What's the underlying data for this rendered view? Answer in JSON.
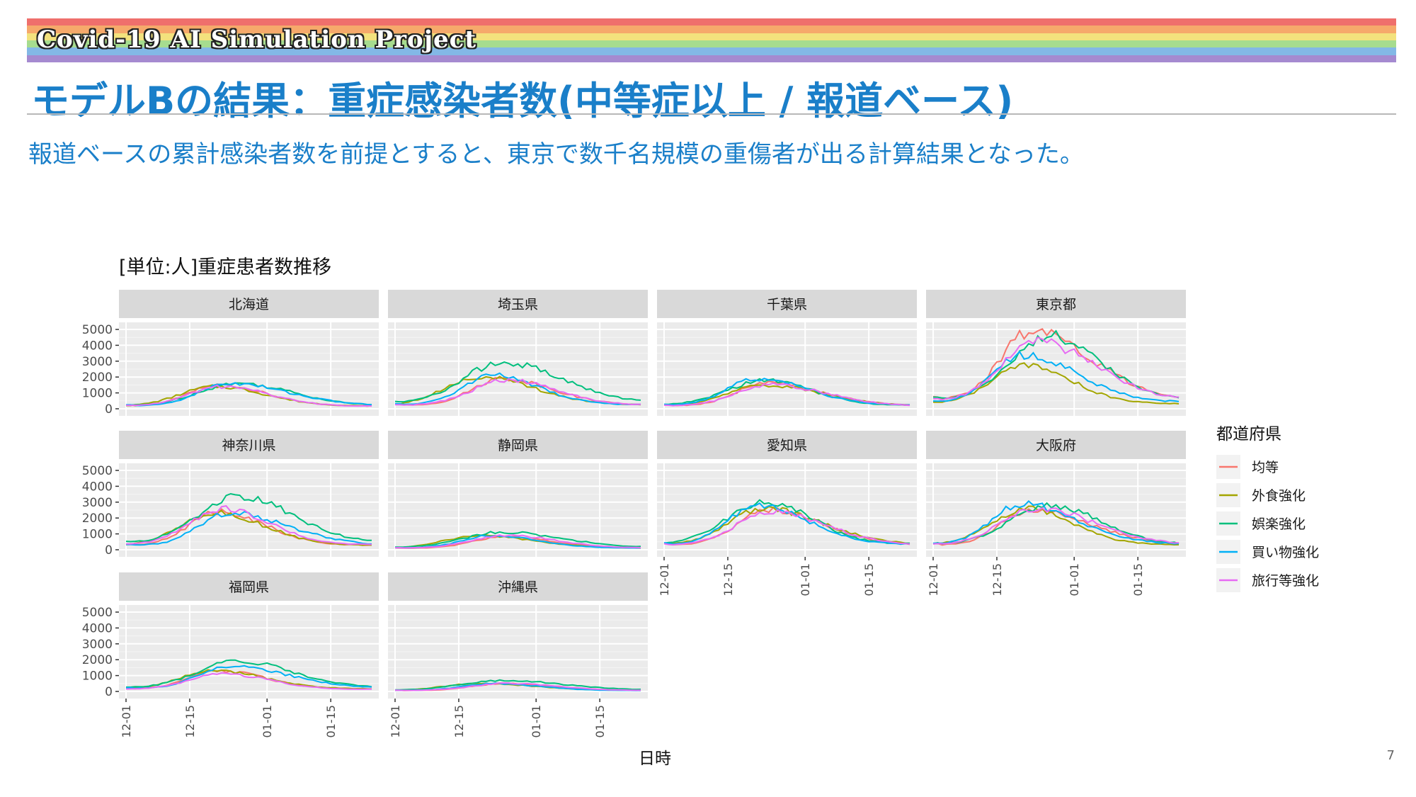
{
  "header": {
    "project": "Covid-19 AI Simulation Project",
    "rainbow_colors": [
      "#ef6f6c",
      "#f6a96b",
      "#f3e27d",
      "#a6dc8f",
      "#83b8e6",
      "#a58ad0"
    ],
    "title": "モデルBの結果：重症感染者数(中等症以上 / 報道ベース)",
    "subtitle": "報道ベースの累計感染者数を前提とすると、東京で数千名規模の重傷者が出る計算結果となった。",
    "page_number": "7"
  },
  "chart_data": {
    "type": "line",
    "title": "[単位:人]重症患者数推移",
    "xlabel": "日時",
    "ylabel": "",
    "ylim": [
      0,
      5000
    ],
    "yticks": [
      0,
      1000,
      2000,
      3000,
      4000,
      5000
    ],
    "xlim": [
      0,
      54
    ],
    "xtick_labels": [
      "12-01",
      "12-15",
      "01-01",
      "01-15"
    ],
    "xtick_positions": [
      0,
      14,
      31,
      45
    ],
    "legend": {
      "title": "都道府県",
      "position": "right",
      "entries": [
        "均等",
        "外食強化",
        "娯楽強化",
        "買い物強化",
        "旅行等強化"
      ],
      "colors": [
        "#f8766d",
        "#a3a500",
        "#00bf7d",
        "#00b0f6",
        "#e76bf3"
      ]
    },
    "panels": [
      {
        "name": "北海道",
        "peaks": [
          1500,
          1400,
          1600,
          1600,
          1400
        ]
      },
      {
        "name": "埼玉県",
        "peaks": [
          1900,
          2000,
          2900,
          2100,
          1800
        ]
      },
      {
        "name": "千葉県",
        "peaks": [
          1600,
          1500,
          1800,
          1900,
          1500
        ]
      },
      {
        "name": "東京都",
        "peaks": [
          4900,
          2700,
          4600,
          3400,
          4200
        ]
      },
      {
        "name": "神奈川県",
        "peaks": [
          2400,
          2300,
          3400,
          2300,
          2600
        ]
      },
      {
        "name": "静岡県",
        "peaks": [
          800,
          900,
          1100,
          900,
          900
        ]
      },
      {
        "name": "愛知県",
        "peaks": [
          2500,
          2600,
          3000,
          2800,
          2400
        ]
      },
      {
        "name": "大阪府",
        "peaks": [
          2500,
          2600,
          2800,
          2900,
          2600
        ]
      },
      {
        "name": "福岡県",
        "peaks": [
          1300,
          1300,
          1900,
          1600,
          1100
        ]
      },
      {
        "name": "沖縄県",
        "peaks": [
          500,
          500,
          700,
          500,
          500
        ]
      }
    ]
  }
}
